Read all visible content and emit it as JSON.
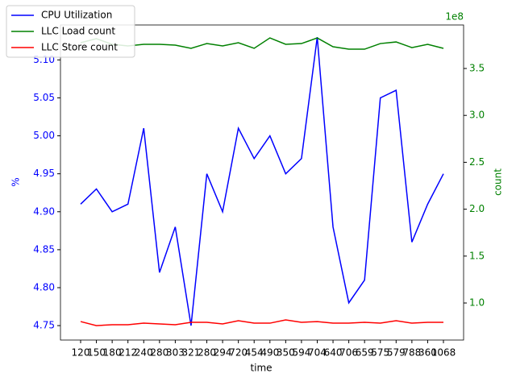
{
  "chart_data": {
    "type": "line",
    "xlabel": "time",
    "ylabel": "%",
    "y2label": "count",
    "y2offset": "1e8",
    "categories": [
      "120",
      "150",
      "180",
      "212",
      "240",
      "280",
      "303",
      "321",
      "280",
      "294",
      "720",
      "454",
      "490",
      "350",
      "594",
      "704",
      "640",
      "706",
      "659",
      "575",
      "579",
      "788",
      "360",
      "1068"
    ],
    "series": [
      {
        "name": "CPU Utilization",
        "color": "#0000ff",
        "values": [
          4.91,
          4.93,
          4.9,
          4.91,
          5.01,
          4.82,
          4.88,
          4.75,
          4.95,
          4.9,
          5.01,
          4.97,
          5.0,
          4.95,
          4.97,
          5.13,
          4.88,
          4.78,
          4.81,
          5.05,
          5.06,
          4.86,
          4.91,
          4.95
        ]
      },
      {
        "name": "LLC Load count",
        "color": "#008000",
        "axis": "y2",
        "values": [
          377500000,
          381800000,
          375800000,
          374100000,
          375800000,
          375800000,
          374900000,
          371500000,
          376600000,
          374100000,
          377500000,
          371500000,
          382600000,
          375800000,
          376600000,
          382600000,
          373200000,
          370600000,
          370600000,
          376600000,
          378300000,
          372300000,
          375800000,
          371500000
        ]
      },
      {
        "name": "LLC Store count",
        "color": "#ff0000",
        "axis": "y2",
        "values": [
          80200000,
          75900000,
          76800000,
          76800000,
          78500000,
          77700000,
          76800000,
          79400000,
          79400000,
          77700000,
          81100000,
          78500000,
          78500000,
          82000000,
          79400000,
          80200000,
          78500000,
          78500000,
          79400000,
          78500000,
          81100000,
          78500000,
          79400000,
          79400000
        ]
      }
    ],
    "ylim": [
      4.731,
      5.146
    ],
    "yticks": [
      {
        "value": 4.75,
        "label": "4.75"
      },
      {
        "value": 4.8,
        "label": "4.80"
      },
      {
        "value": 4.85,
        "label": "4.85"
      },
      {
        "value": 4.9,
        "label": "4.90"
      },
      {
        "value": 4.95,
        "label": "4.95"
      },
      {
        "value": 5.0,
        "label": "5.00"
      },
      {
        "value": 5.05,
        "label": "5.05"
      },
      {
        "value": 5.1,
        "label": "5.10"
      }
    ],
    "y2lim": [
      60500000,
      396400000
    ],
    "y2ticks": [
      {
        "value": 100000000,
        "label": "1.0"
      },
      {
        "value": 150000000,
        "label": "1.5"
      },
      {
        "value": 200000000,
        "label": "2.0"
      },
      {
        "value": 250000000,
        "label": "2.5"
      },
      {
        "value": 300000000,
        "label": "3.0"
      },
      {
        "value": 350000000,
        "label": "3.5"
      }
    ],
    "ycolor": "#0000ff",
    "y2color": "#008000",
    "legend": "upper left"
  }
}
